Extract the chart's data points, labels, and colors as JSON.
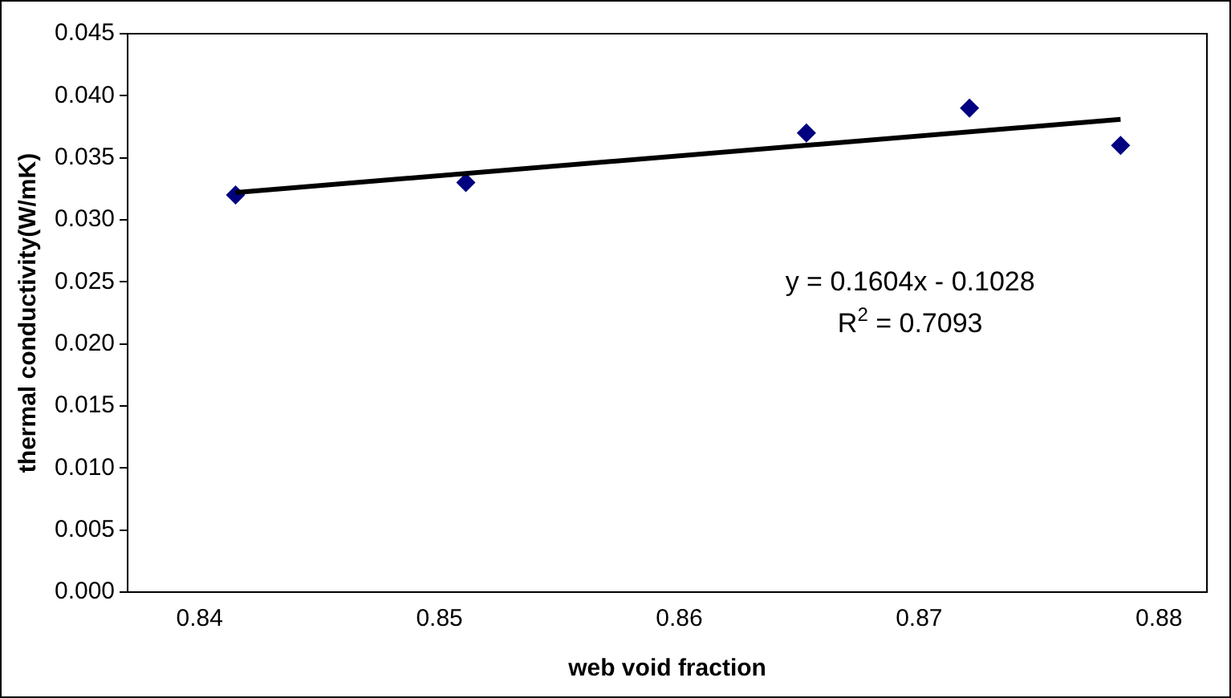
{
  "chart_data": {
    "type": "scatter",
    "xlabel": "web void fraction",
    "ylabel": "thermal conductivity(W/mK)",
    "series": [
      {
        "color": "#000080",
        "marker": "diamond",
        "x": [
          0.8415,
          0.8511,
          0.8653,
          0.8721,
          0.8784
        ],
        "values": [
          0.032,
          0.033,
          0.037,
          0.039,
          0.036
        ]
      },
      {
        "type": "line",
        "color": "#000000",
        "marker": "none",
        "line_style": "solid",
        "x": [
          0.8415,
          0.8784
        ],
        "values": [
          0.0322,
          0.0381
        ]
      }
    ],
    "xlim": [
      0.837,
      0.882
    ],
    "xticks": [
      0.84,
      0.85,
      0.86,
      0.87,
      0.88
    ],
    "ylim": [
      0,
      0.045
    ],
    "yticks": [
      {
        "value": 0,
        "label": "0.000"
      },
      {
        "value": 0.005,
        "label": "0.005"
      },
      {
        "value": 0.01,
        "label": "0.010"
      },
      {
        "value": 0.015,
        "label": "0.015"
      },
      {
        "value": 0.02,
        "label": "0.020"
      },
      {
        "value": 0.025,
        "label": "0.025"
      },
      {
        "value": 0.03,
        "label": "0.030"
      },
      {
        "value": 0.035,
        "label": "0.035"
      },
      {
        "value": 0.04,
        "label": "0.040"
      },
      {
        "value": 0.045,
        "label": "0.045"
      }
    ],
    "annotations": [
      "y = 0.1604x - 0.1028",
      "R$^{2}$ = 0.7093"
    ],
    "grid": false,
    "legend": false
  }
}
